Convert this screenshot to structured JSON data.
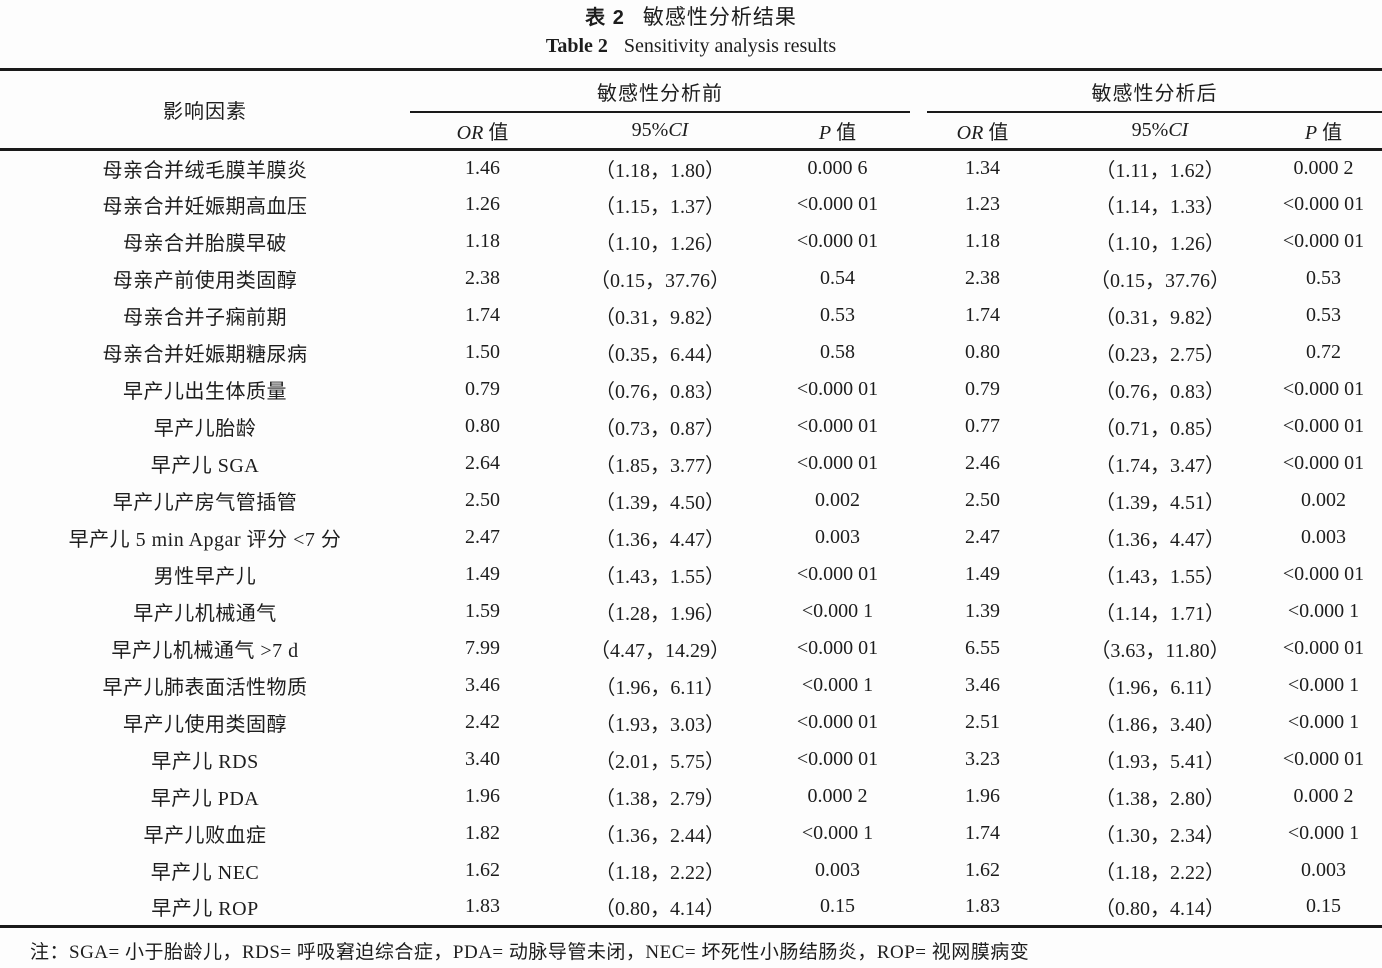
{
  "title": {
    "zh_label": "表 2",
    "zh_text": "敏感性分析结果",
    "en_label": "Table 2",
    "en_text": "Sensitivity analysis results"
  },
  "table": {
    "factor_header": "影响因素",
    "group_before": "敏感性分析前",
    "group_after": "敏感性分析后",
    "subheader": {
      "or_sym": "OR",
      "or_word": " 值",
      "ci_num": "95%",
      "ci_sym": "CI",
      "p_sym": "P",
      "p_word": " 值"
    },
    "rows": [
      {
        "factor": "母亲合并绒毛膜羊膜炎",
        "before_or": "1.46",
        "before_ci": "（1.18，1.80）",
        "before_p": "0.000 6",
        "after_or": "1.34",
        "after_ci": "（1.11，1.62）",
        "after_p": "0.000 2"
      },
      {
        "factor": "母亲合并妊娠期高血压",
        "before_or": "1.26",
        "before_ci": "（1.15，1.37）",
        "before_p": "<0.000 01",
        "after_or": "1.23",
        "after_ci": "（1.14，1.33）",
        "after_p": "<0.000 01"
      },
      {
        "factor": "母亲合并胎膜早破",
        "before_or": "1.18",
        "before_ci": "（1.10，1.26）",
        "before_p": "<0.000 01",
        "after_or": "1.18",
        "after_ci": "（1.10，1.26）",
        "after_p": "<0.000 01"
      },
      {
        "factor": "母亲产前使用类固醇",
        "before_or": "2.38",
        "before_ci": "（0.15，37.76）",
        "before_p": "0.54",
        "after_or": "2.38",
        "after_ci": "（0.15，37.76）",
        "after_p": "0.53"
      },
      {
        "factor": "母亲合并子痫前期",
        "before_or": "1.74",
        "before_ci": "（0.31，9.82）",
        "before_p": "0.53",
        "after_or": "1.74",
        "after_ci": "（0.31，9.82）",
        "after_p": "0.53"
      },
      {
        "factor": "母亲合并妊娠期糖尿病",
        "before_or": "1.50",
        "before_ci": "（0.35，6.44）",
        "before_p": "0.58",
        "after_or": "0.80",
        "after_ci": "（0.23，2.75）",
        "after_p": "0.72"
      },
      {
        "factor": "早产儿出生体质量",
        "before_or": "0.79",
        "before_ci": "（0.76，0.83）",
        "before_p": "<0.000 01",
        "after_or": "0.79",
        "after_ci": "（0.76，0.83）",
        "after_p": "<0.000 01"
      },
      {
        "factor": "早产儿胎龄",
        "before_or": "0.80",
        "before_ci": "（0.73，0.87）",
        "before_p": "<0.000 01",
        "after_or": "0.77",
        "after_ci": "（0.71，0.85）",
        "after_p": "<0.000 01"
      },
      {
        "factor": "早产儿 SGA",
        "before_or": "2.64",
        "before_ci": "（1.85，3.77）",
        "before_p": "<0.000 01",
        "after_or": "2.46",
        "after_ci": "（1.74，3.47）",
        "after_p": "<0.000 01"
      },
      {
        "factor": "早产儿产房气管插管",
        "before_or": "2.50",
        "before_ci": "（1.39，4.50）",
        "before_p": "0.002",
        "after_or": "2.50",
        "after_ci": "（1.39，4.51）",
        "after_p": "0.002"
      },
      {
        "factor": "早产儿 5 min Apgar 评分 <7 分",
        "before_or": "2.47",
        "before_ci": "（1.36，4.47）",
        "before_p": "0.003",
        "after_or": "2.47",
        "after_ci": "（1.36，4.47）",
        "after_p": "0.003"
      },
      {
        "factor": "男性早产儿",
        "before_or": "1.49",
        "before_ci": "（1.43，1.55）",
        "before_p": "<0.000 01",
        "after_or": "1.49",
        "after_ci": "（1.43，1.55）",
        "after_p": "<0.000 01"
      },
      {
        "factor": "早产儿机械通气",
        "before_or": "1.59",
        "before_ci": "（1.28，1.96）",
        "before_p": "<0.000 1",
        "after_or": "1.39",
        "after_ci": "（1.14，1.71）",
        "after_p": "<0.000 1"
      },
      {
        "factor": "早产儿机械通气 >7 d",
        "before_or": "7.99",
        "before_ci": "（4.47，14.29）",
        "before_p": "<0.000 01",
        "after_or": "6.55",
        "after_ci": "（3.63，11.80）",
        "after_p": "<0.000 01"
      },
      {
        "factor": "早产儿肺表面活性物质",
        "before_or": "3.46",
        "before_ci": "（1.96，6.11）",
        "before_p": "<0.000 1",
        "after_or": "3.46",
        "after_ci": "（1.96，6.11）",
        "after_p": "<0.000 1"
      },
      {
        "factor": "早产儿使用类固醇",
        "before_or": "2.42",
        "before_ci": "（1.93，3.03）",
        "before_p": "<0.000 01",
        "after_or": "2.51",
        "after_ci": "（1.86，3.40）",
        "after_p": "<0.000 1"
      },
      {
        "factor": "早产儿 RDS",
        "before_or": "3.40",
        "before_ci": "（2.01，5.75）",
        "before_p": "<0.000 01",
        "after_or": "3.23",
        "after_ci": "（1.93，5.41）",
        "after_p": "<0.000 01"
      },
      {
        "factor": "早产儿 PDA",
        "before_or": "1.96",
        "before_ci": "（1.38，2.79）",
        "before_p": "0.000 2",
        "after_or": "1.96",
        "after_ci": "（1.38，2.80）",
        "after_p": "0.000 2"
      },
      {
        "factor": "早产儿败血症",
        "before_or": "1.82",
        "before_ci": "（1.36，2.44）",
        "before_p": "<0.000 1",
        "after_or": "1.74",
        "after_ci": "（1.30，2.34）",
        "after_p": "<0.000 1"
      },
      {
        "factor": "早产儿 NEC",
        "before_or": "1.62",
        "before_ci": "（1.18，2.22）",
        "before_p": "0.003",
        "after_or": "1.62",
        "after_ci": "（1.18，2.22）",
        "after_p": "0.003"
      },
      {
        "factor": "早产儿 ROP",
        "before_or": "1.83",
        "before_ci": "（0.80，4.14）",
        "before_p": "0.15",
        "after_or": "1.83",
        "after_ci": "（0.80，4.14）",
        "after_p": "0.15"
      }
    ]
  },
  "footnote": "注：SGA= 小于胎龄儿，RDS= 呼吸窘迫综合症，PDA= 动脉导管未闭，NEC= 坏死性小肠结肠炎，ROP= 视网膜病变"
}
